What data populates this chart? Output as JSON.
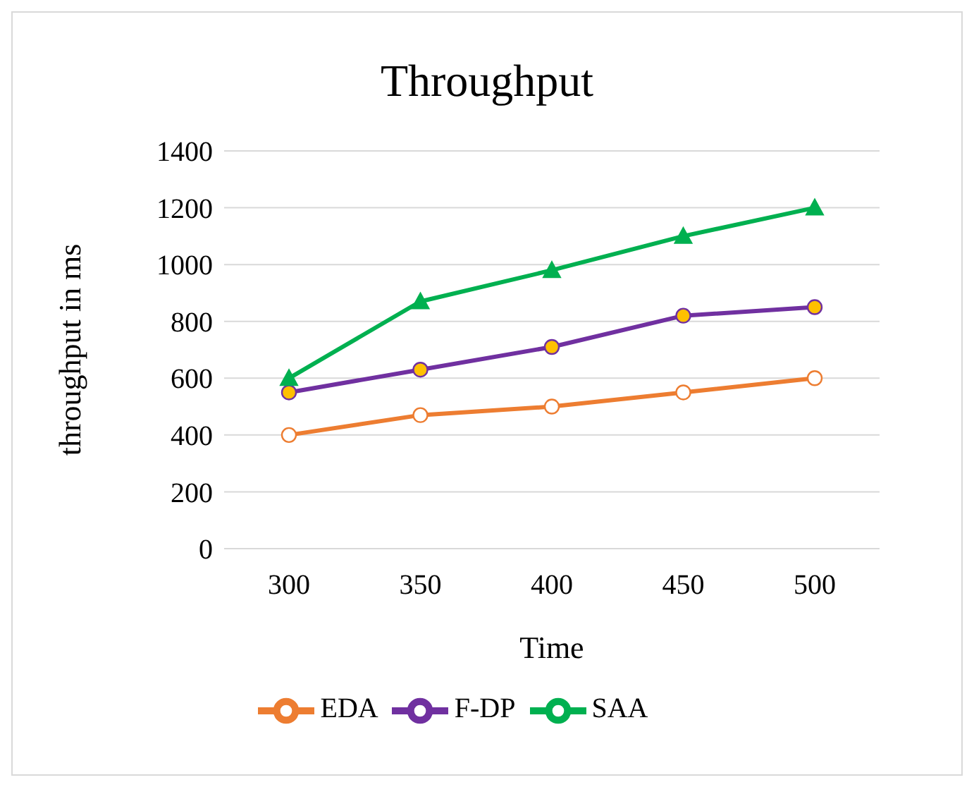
{
  "chart_data": {
    "type": "line",
    "title": "Throughput",
    "xlabel": "Time",
    "ylabel": "throughput in ms",
    "categories": [
      "300",
      "350",
      "400",
      "450",
      "500"
    ],
    "series": [
      {
        "name": "EDA",
        "color": "#ed7d31",
        "values": [
          400,
          470,
          500,
          550,
          600
        ],
        "marker": "circle"
      },
      {
        "name": "F-DP",
        "color": "#7030a0",
        "values": [
          550,
          630,
          710,
          820,
          850
        ],
        "marker": "circle"
      },
      {
        "name": "SAA",
        "color": "#00b050",
        "values": [
          600,
          870,
          980,
          1100,
          1200
        ],
        "marker": "triangle"
      }
    ],
    "ylim": [
      0,
      1400
    ],
    "yticks": [
      0,
      200,
      400,
      600,
      800,
      1000,
      1200,
      1400
    ],
    "grid": "y",
    "legend": "bottom"
  }
}
